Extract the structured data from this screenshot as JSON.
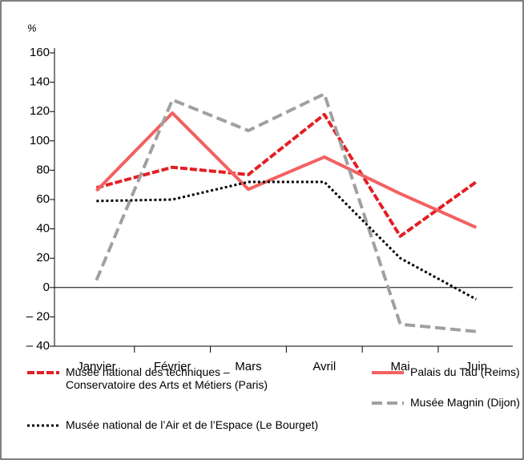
{
  "chart_data": {
    "type": "line",
    "y_label": "%",
    "categories": [
      "Janvier",
      "Février",
      "Mars",
      "Avril",
      "Mai",
      "Juin"
    ],
    "series": [
      {
        "name": "Musée national des techniques – Conservatoire des Arts et Métiers (Paris)",
        "color": "#e31e24",
        "dash": "9,3",
        "values": [
          68,
          82,
          77,
          118,
          35,
          72
        ]
      },
      {
        "name": "Palais du Tau (Reims)",
        "color": "#f26161",
        "dash": "none",
        "values": [
          66,
          119,
          67,
          89,
          64,
          41
        ]
      },
      {
        "name": "Musée Magnin (Dijon)",
        "color": "#a0a0a0",
        "dash": "13,6",
        "values": [
          5,
          128,
          107,
          132,
          -25,
          -30
        ]
      },
      {
        "name": "Musée national de l’Air et de l’Espace (Le Bourget)",
        "color": "#000000",
        "dash": "3,3",
        "values": [
          59,
          60,
          72,
          72,
          20,
          -8
        ]
      }
    ],
    "ylim": [
      -40,
      160
    ],
    "yticks": [
      {
        "value": -40,
        "label": "– 40"
      },
      {
        "value": -20,
        "label": "– 20"
      },
      0,
      20,
      40,
      60,
      80,
      100,
      120,
      140,
      160
    ]
  }
}
